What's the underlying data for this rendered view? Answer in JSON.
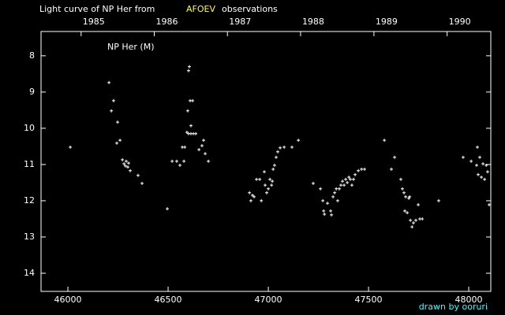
{
  "chart_data": {
    "type": "scatter",
    "title_parts": [
      "Light curve of NP Her from",
      "AFOEV",
      "observations"
    ],
    "title_colors": [
      "#ffffff",
      "#ffff33",
      "#ffffff"
    ],
    "credit": "drawn by ooruri",
    "credit_color": "#33ffff",
    "background": "#000000",
    "series": [
      {
        "name": "NP Her (M)",
        "color": "#ffffff",
        "x": [
          46012,
          46205,
          46217,
          46228,
          46244,
          46248,
          46260,
          46272,
          46280,
          46287,
          46291,
          46299,
          46303,
          46311,
          46350,
          46370,
          46496,
          46520,
          46543,
          46559,
          46571,
          46579,
          46583,
          46594,
          46598,
          46602,
          46606,
          46610,
          46622,
          46602,
          46614,
          46614,
          46626,
          46638,
          46654,
          46669,
          46677,
          46685,
          46701,
          46906,
          46913,
          46921,
          46929,
          46941,
          46957,
          46965,
          46980,
          46984,
          46992,
          47000,
          47008,
          47016,
          47020,
          47024,
          47031,
          47039,
          47047,
          47059,
          47079,
          47118,
          47150,
          47224,
          47260,
          47272,
          47276,
          47280,
          47295,
          47311,
          47315,
          47323,
          47331,
          47339,
          47346,
          47354,
          47362,
          47370,
          47378,
          47386,
          47394,
          47402,
          47409,
          47417,
          47425,
          47433,
          47449,
          47465,
          47480,
          47579,
          47614,
          47630,
          47661,
          47669,
          47677,
          47685,
          47681,
          47693,
          47701,
          47705,
          47709,
          47717,
          47724,
          47736,
          47748,
          47756,
          47768,
          47850,
          47972,
          48012,
          48039,
          48043,
          48047,
          48055,
          48063,
          48071,
          48079,
          48087,
          48094,
          48102
        ],
        "values": [
          10.52,
          8.74,
          9.52,
          9.24,
          10.41,
          9.83,
          10.33,
          10.87,
          10.98,
          11.04,
          10.91,
          11.07,
          10.96,
          11.17,
          11.3,
          11.52,
          12.22,
          10.91,
          10.91,
          11.02,
          10.52,
          10.91,
          10.52,
          10.11,
          9.52,
          8.41,
          8.3,
          9.24,
          9.24,
          10.15,
          9.93,
          10.15,
          10.15,
          10.15,
          10.59,
          10.48,
          10.33,
          10.7,
          10.91,
          11.78,
          12.0,
          11.85,
          11.89,
          11.41,
          11.41,
          12.0,
          11.2,
          11.57,
          11.78,
          11.67,
          11.41,
          11.57,
          11.46,
          11.13,
          11.02,
          10.8,
          10.65,
          10.54,
          10.52,
          10.52,
          10.33,
          11.52,
          11.67,
          12.0,
          12.28,
          12.37,
          12.07,
          12.28,
          12.39,
          11.89,
          11.78,
          11.67,
          12.0,
          11.67,
          11.57,
          11.46,
          11.57,
          11.41,
          11.5,
          11.35,
          11.41,
          11.57,
          11.41,
          11.28,
          11.17,
          11.13,
          11.13,
          10.33,
          11.13,
          10.8,
          11.41,
          11.67,
          11.78,
          11.89,
          12.28,
          12.33,
          11.93,
          11.89,
          12.54,
          12.72,
          12.61,
          12.54,
          12.11,
          12.5,
          12.5,
          12.0,
          10.8,
          10.91,
          11.02,
          10.52,
          11.28,
          10.8,
          11.35,
          10.98,
          11.41,
          11.02,
          11.2,
          12.11
        ]
      }
    ],
    "xlim": [
      45866,
      48110
    ],
    "xticks": [
      46000,
      46500,
      47000,
      47500,
      48000
    ],
    "x2ticks": [
      {
        "value": 46066,
        "label": "1985"
      },
      {
        "value": 46431,
        "label": "1986"
      },
      {
        "value": 46796,
        "label": "1987"
      },
      {
        "value": 47161,
        "label": "1988"
      },
      {
        "value": 47527,
        "label": "1989"
      },
      {
        "value": 47892,
        "label": "1990"
      }
    ],
    "ylim": [
      14.5,
      7.33
    ],
    "yticks": [
      8,
      9,
      10,
      11,
      12,
      13,
      14
    ]
  }
}
